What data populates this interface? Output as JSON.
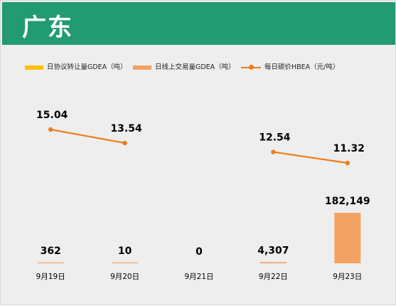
{
  "banner": {
    "title": "广东"
  },
  "legend": {
    "items": [
      {
        "label": "日协议转让量GDEA（吨）",
        "color": "#ffc000",
        "kind": "bar"
      },
      {
        "label": "日线上交易量GDEA（吨）",
        "color": "#f4a261",
        "kind": "bar"
      },
      {
        "label": "每日碳价HBEA（元/吨）",
        "color": "#ed7d1a",
        "kind": "line"
      }
    ]
  },
  "chart_data": {
    "type": "bar",
    "categories": [
      "9月19日",
      "9月20日",
      "9月21日",
      "9月22日",
      "9月23日"
    ],
    "series": [
      {
        "name": "日协议转让量GDEA（吨）",
        "type": "bar",
        "color": "#ffc000",
        "values": [
          0,
          0,
          0,
          0,
          0
        ]
      },
      {
        "name": "日线上交易量GDEA（吨）",
        "type": "bar",
        "color": "#f4a261",
        "values": [
          362,
          10,
          0,
          4307,
          182149
        ],
        "data_labels": [
          "362",
          "10",
          "0",
          "4,307",
          "182,149"
        ]
      },
      {
        "name": "每日碳价HBEA（元/吨）",
        "type": "line",
        "color": "#ed7d1a",
        "values": [
          15.04,
          13.54,
          null,
          12.54,
          11.32
        ],
        "data_labels": [
          "15.04",
          "13.54",
          "",
          "12.54",
          "11.32"
        ]
      }
    ],
    "legend_position": "top-left",
    "grid": false
  }
}
